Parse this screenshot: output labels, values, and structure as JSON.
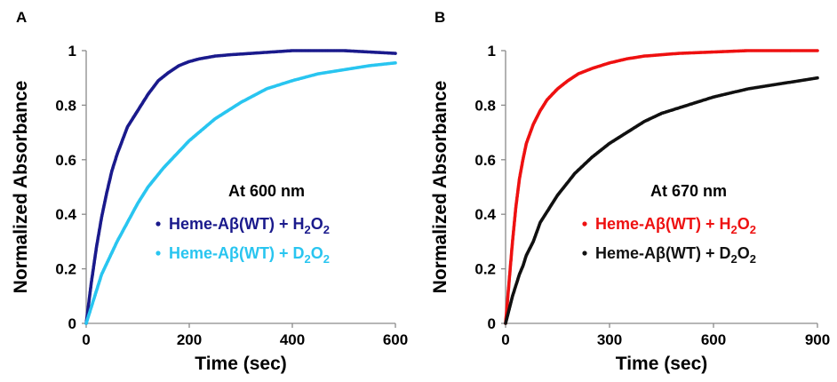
{
  "chart_data": [
    {
      "panel_label": "A",
      "type": "scatter",
      "xlabel": "Time (sec)",
      "ylabel": "Normalized Absorbance",
      "xlim": [
        0,
        600
      ],
      "ylim": [
        0,
        1
      ],
      "xticks": [
        "0",
        "200",
        "400",
        "600"
      ],
      "yticks": [
        "0",
        "0.2",
        "0.4",
        "0.6",
        "0.8",
        "1"
      ],
      "grid": false,
      "legend_position": "center-right",
      "annotation": "At 600 nm",
      "series": [
        {
          "name": "Heme-Aβ(WT) + H2O2",
          "legend_parts": [
            "Heme-Aβ(WT) + H",
            "2",
            "O",
            "2"
          ],
          "color": "#1a1a8c",
          "x": [
            0,
            10,
            20,
            30,
            40,
            50,
            60,
            70,
            80,
            90,
            100,
            120,
            140,
            160,
            180,
            200,
            220,
            250,
            280,
            320,
            360,
            400,
            450,
            500,
            550,
            600
          ],
          "y": [
            0,
            0.15,
            0.28,
            0.39,
            0.48,
            0.56,
            0.62,
            0.67,
            0.72,
            0.75,
            0.78,
            0.84,
            0.89,
            0.92,
            0.945,
            0.96,
            0.97,
            0.98,
            0.985,
            0.99,
            0.995,
            1.0,
            1.0,
            1.0,
            0.995,
            0.99
          ]
        },
        {
          "name": "Heme-Aβ(WT) + D2O2",
          "legend_parts": [
            "Heme-Aβ(WT) + D",
            "2",
            "O",
            "2"
          ],
          "color": "#29c5f0",
          "x": [
            0,
            10,
            20,
            30,
            40,
            50,
            60,
            80,
            100,
            120,
            150,
            180,
            200,
            250,
            300,
            350,
            400,
            450,
            500,
            550,
            600
          ],
          "y": [
            0,
            0.06,
            0.12,
            0.18,
            0.22,
            0.26,
            0.3,
            0.37,
            0.44,
            0.5,
            0.57,
            0.63,
            0.67,
            0.75,
            0.81,
            0.86,
            0.89,
            0.915,
            0.93,
            0.945,
            0.955
          ]
        }
      ]
    },
    {
      "panel_label": "B",
      "type": "scatter",
      "xlabel": "Time (sec)",
      "ylabel": "Normalized Absorbance",
      "xlim": [
        0,
        900
      ],
      "ylim": [
        0,
        1
      ],
      "xticks": [
        "0",
        "300",
        "600",
        "900"
      ],
      "yticks": [
        "0",
        "0.2",
        "0.4",
        "0.6",
        "0.8",
        "1"
      ],
      "grid": false,
      "legend_position": "center-right",
      "annotation": "At 670 nm",
      "series": [
        {
          "name": "Heme-Aβ(WT) + H2O2",
          "legend_parts": [
            "Heme-Aβ(WT) + H",
            "2",
            "O",
            "2"
          ],
          "color": "#ee1111",
          "x": [
            0,
            10,
            20,
            30,
            40,
            50,
            60,
            80,
            100,
            120,
            150,
            180,
            210,
            250,
            300,
            350,
            400,
            450,
            500,
            600,
            700,
            800,
            900
          ],
          "y": [
            0,
            0.15,
            0.3,
            0.43,
            0.53,
            0.6,
            0.66,
            0.73,
            0.78,
            0.82,
            0.86,
            0.89,
            0.915,
            0.935,
            0.955,
            0.97,
            0.98,
            0.985,
            0.99,
            0.995,
            1.0,
            1.0,
            1.0
          ]
        },
        {
          "name": "Heme-Aβ(WT) + D2O2",
          "legend_parts": [
            "Heme-Aβ(WT) + D",
            "2",
            "O",
            "2"
          ],
          "color": "#111111",
          "x": [
            0,
            10,
            20,
            30,
            40,
            50,
            60,
            80,
            100,
            150,
            200,
            250,
            300,
            350,
            400,
            450,
            500,
            600,
            700,
            800,
            900
          ],
          "y": [
            0,
            0.05,
            0.1,
            0.14,
            0.18,
            0.21,
            0.25,
            0.3,
            0.37,
            0.47,
            0.55,
            0.61,
            0.66,
            0.7,
            0.74,
            0.77,
            0.79,
            0.83,
            0.86,
            0.88,
            0.9
          ]
        }
      ]
    }
  ]
}
